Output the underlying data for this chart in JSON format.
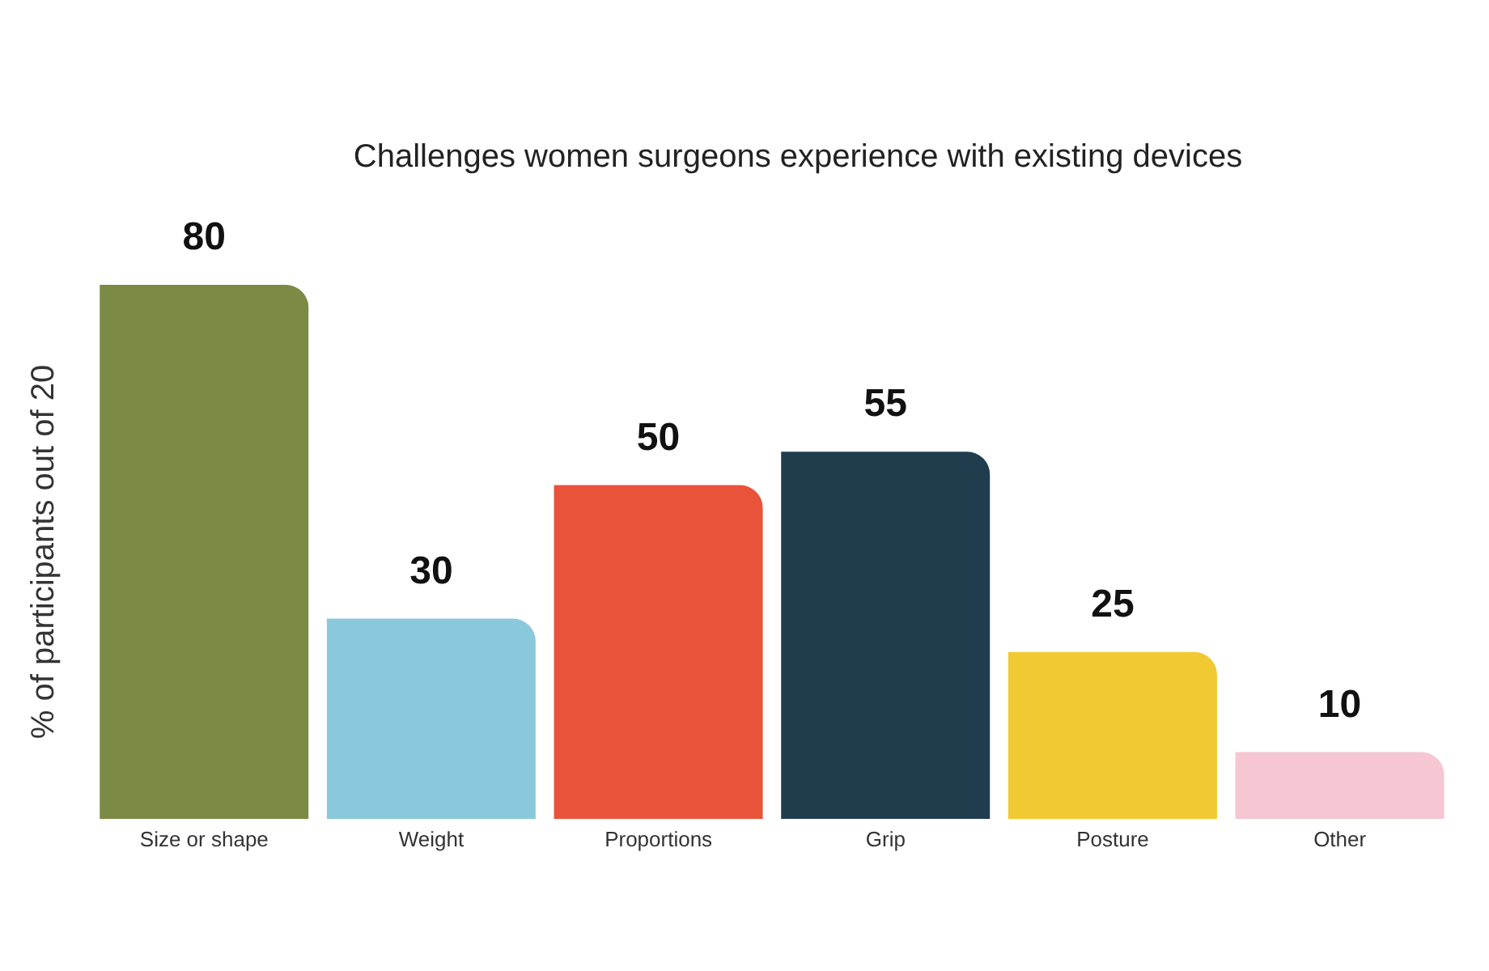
{
  "chart_data": {
    "type": "bar",
    "title": "Challenges women surgeons experience with existing devices",
    "ylabel": "% of participants out of 20",
    "categories": [
      "Size or shape",
      "Weight",
      "Proportions",
      "Grip",
      "Posture",
      "Other"
    ],
    "values": [
      80,
      30,
      50,
      55,
      25,
      10
    ],
    "colors": [
      "#7b8a44",
      "#89c9db",
      "#e8533a",
      "#1f3d4d",
      "#f1c932",
      "#f6c6d3"
    ],
    "data_labels": true,
    "grid": false,
    "legend": false
  }
}
